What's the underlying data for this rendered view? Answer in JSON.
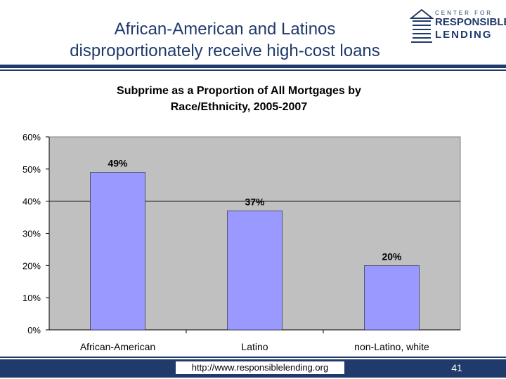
{
  "slide": {
    "title_line1": "African-American and Latinos",
    "title_line2": "disproportionately receive high-cost loans"
  },
  "logo": {
    "line1": "CENTER FOR",
    "line2": "RESPONSIBLE",
    "line3": "LENDING"
  },
  "footer": {
    "url": "http://www.responsiblelending.org",
    "page": "41"
  },
  "colors": {
    "navy": "#1f3a6b",
    "plot_bg": "#c0c0c0",
    "bar": "#9999ff"
  },
  "chart_data": {
    "type": "bar",
    "title_line1": "Subprime as a Proportion of All Mortgages by",
    "title_line2": "Race/Ethnicity, 2005-2007",
    "categories": [
      "African-American",
      "Latino",
      "non-Latino, white"
    ],
    "values": [
      49,
      37,
      20
    ],
    "data_labels": [
      "49%",
      "37%",
      "20%"
    ],
    "yticks": [
      0,
      10,
      20,
      30,
      40,
      50,
      60
    ],
    "ytick_labels": [
      "0%",
      "10%",
      "20%",
      "30%",
      "40%",
      "50%",
      "60%"
    ],
    "ylim": [
      0,
      60
    ],
    "reference_line": 40,
    "grid": false,
    "legend": "none"
  }
}
